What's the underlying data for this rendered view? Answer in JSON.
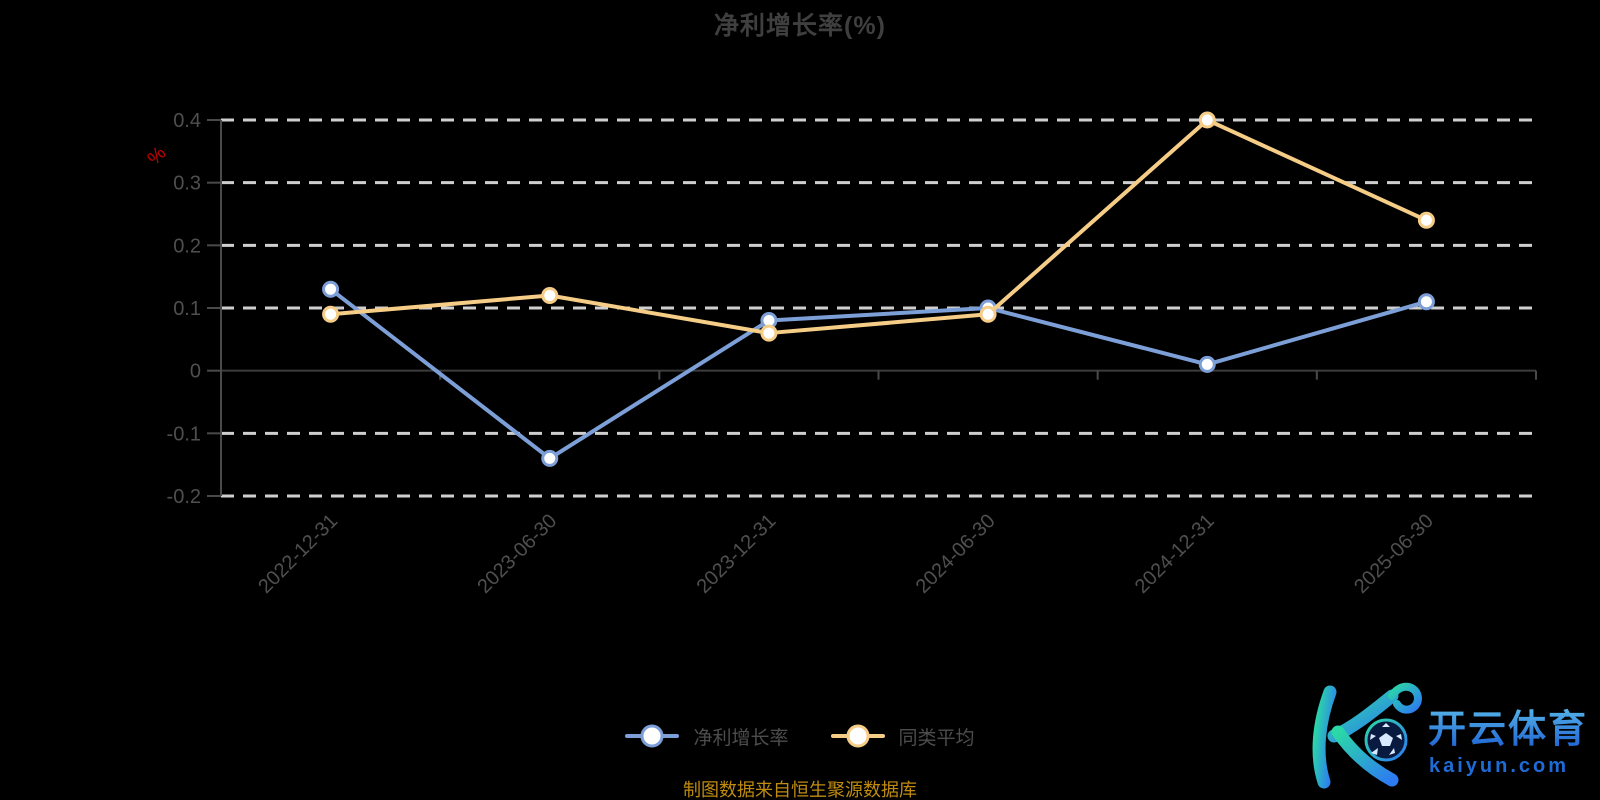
{
  "title": "净利增长率(%)",
  "chart_data": {
    "type": "line",
    "title": "净利增长率(%)",
    "y_unit": "%",
    "categories": [
      "2022-12-31",
      "2023-06-30",
      "2023-12-31",
      "2024-06-30",
      "2024-12-31",
      "2025-06-30"
    ],
    "series": [
      {
        "name": "净利增长率",
        "color": "#7d9fd8",
        "values": [
          0.13,
          -0.14,
          0.08,
          0.1,
          0.01,
          0.11
        ]
      },
      {
        "name": "同类平均",
        "color": "#f5cd87",
        "values": [
          0.09,
          0.12,
          0.06,
          0.09,
          0.4,
          0.24
        ]
      }
    ],
    "ylim": [
      -0.2,
      0.4
    ],
    "yticks": [
      "0.4",
      "0.3",
      "0.2",
      "0.1",
      "0",
      "-0.1",
      "-0.2"
    ],
    "grid": "horizontal-dashed",
    "legend_position": "bottom-center",
    "marker_fill": "#ffffff",
    "style": {
      "grid_color": "#cfcfcf",
      "axis_color": "#4a4a4a",
      "zero_line_color": "#3c3c3c",
      "label_color": "#4f4f4f",
      "unit_color": "#c40000"
    }
  },
  "legend": {
    "items": [
      {
        "label": "净利增长率",
        "color": "#7d9fd8"
      },
      {
        "label": "同类平均",
        "color": "#f5cd87"
      }
    ]
  },
  "footer": {
    "source_note": "制图数据来自恒生聚源数据库"
  },
  "watermark": {
    "brand_cn": "开云体育",
    "domain": "kaiyun.com",
    "k_gradient": [
      "#2bd8a6",
      "#2d7bf2"
    ],
    "text_gradient": [
      "#54b1e8",
      "#1b5ed2"
    ],
    "domain_color": "#1e6bd6",
    "ball_fill": "#081a40",
    "ball_pattern": "#d6e9ff"
  }
}
